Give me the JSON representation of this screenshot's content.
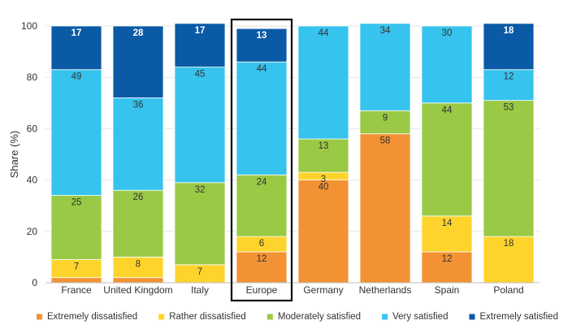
{
  "chart_data": {
    "type": "bar",
    "stacked": true,
    "title": "",
    "xlabel": "",
    "ylabel": "Share (%)",
    "ylim": [
      0,
      100
    ],
    "yticks": [
      0,
      20,
      40,
      60,
      80,
      100
    ],
    "grid": true,
    "legend_position": "bottom",
    "highlighted_category": "Europe",
    "categories": [
      "France",
      "United Kingdom",
      "Italy",
      "Europe",
      "Germany",
      "Netherlands",
      "Spain",
      "Poland"
    ],
    "series": [
      {
        "name": "Extremely dissatisfied",
        "color": "#f39234",
        "values": [
          2,
          2,
          0,
          12,
          40,
          58,
          12,
          0
        ],
        "labels": [
          "",
          "",
          "",
          "12",
          "40",
          "58",
          "12",
          ""
        ]
      },
      {
        "name": "Rather dissatisfied",
        "color": "#fed42c",
        "values": [
          7,
          8,
          7,
          6,
          3,
          0,
          14,
          18
        ],
        "labels": [
          "7",
          "8",
          "7",
          "6",
          "3",
          "",
          "14",
          "18"
        ]
      },
      {
        "name": "Moderately satisfied",
        "color": "#9ac945",
        "values": [
          25,
          26,
          32,
          24,
          13,
          9,
          44,
          53
        ],
        "labels": [
          "25",
          "26",
          "32",
          "24",
          "13",
          "9",
          "44",
          "53"
        ]
      },
      {
        "name": "Very satisfied",
        "color": "#36c3ee",
        "values": [
          49,
          36,
          45,
          44,
          44,
          34,
          30,
          12
        ],
        "labels": [
          "49",
          "36",
          "45",
          "44",
          "44",
          "34",
          "30",
          "12"
        ]
      },
      {
        "name": "Extremely satisfied",
        "color": "#0b5aa6",
        "values": [
          17,
          28,
          17,
          13,
          0,
          0,
          0,
          18
        ],
        "labels": [
          "17",
          "28",
          "17",
          "13",
          "",
          "",
          "",
          "18"
        ]
      }
    ]
  }
}
